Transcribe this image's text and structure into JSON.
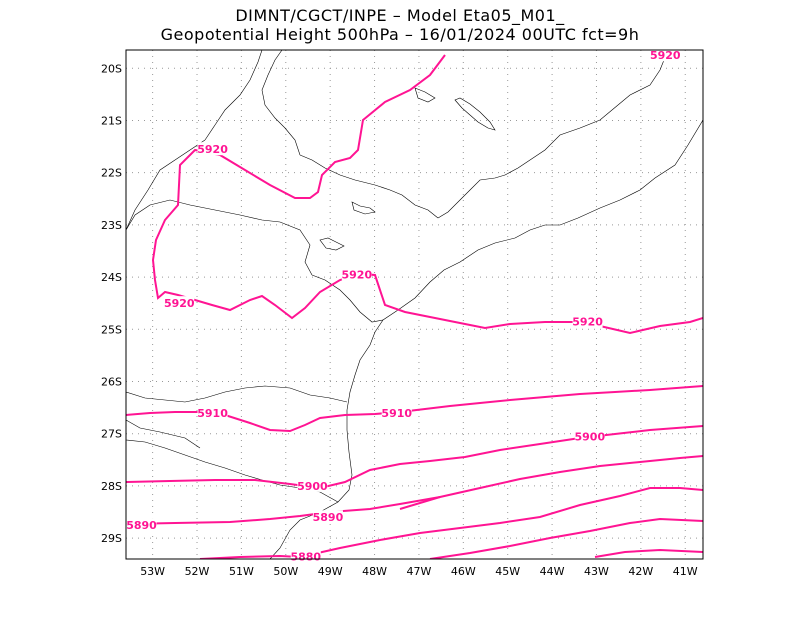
{
  "header": {
    "line1": "DIMNT/CGCT/INPE  –   Model Eta05_M01_",
    "line2": "Geopotential Height 500hPa  –   16/01/2024 00UTC fct=9h"
  },
  "map": {
    "lon_range": [
      -53.6,
      -40.6
    ],
    "lat_range": [
      -29.4,
      -19.65
    ],
    "lat_ticks": [
      {
        "lat": -20,
        "label": "20S"
      },
      {
        "lat": -21,
        "label": "21S"
      },
      {
        "lat": -22,
        "label": "22S"
      },
      {
        "lat": -23,
        "label": "23S"
      },
      {
        "lat": -24,
        "label": "24S"
      },
      {
        "lat": -25,
        "label": "25S"
      },
      {
        "lat": -26,
        "label": "26S"
      },
      {
        "lat": -27,
        "label": "27S"
      },
      {
        "lat": -28,
        "label": "28S"
      },
      {
        "lat": -29,
        "label": "29S"
      }
    ],
    "lon_ticks": [
      {
        "lon": -53,
        "label": "53W"
      },
      {
        "lon": -52,
        "label": "52W"
      },
      {
        "lon": -51,
        "label": "51W"
      },
      {
        "lon": -50,
        "label": "50W"
      },
      {
        "lon": -49,
        "label": "49W"
      },
      {
        "lon": -48,
        "label": "48W"
      },
      {
        "lon": -47,
        "label": "47W"
      },
      {
        "lon": -46,
        "label": "46W"
      },
      {
        "lon": -45,
        "label": "45W"
      },
      {
        "lon": -44,
        "label": "44W"
      },
      {
        "lon": -43,
        "label": "43W"
      },
      {
        "lon": -42,
        "label": "42W"
      },
      {
        "lon": -41,
        "label": "41W"
      }
    ],
    "contour_color": "#ff1493",
    "contour_labels": [
      {
        "text": "5920",
        "lon": -41.45,
        "lat": -19.75
      },
      {
        "text": "5920",
        "lon": -51.65,
        "lat": -21.55
      },
      {
        "text": "5920",
        "lon": -52.4,
        "lat": -24.5
      },
      {
        "text": "5920",
        "lon": -48.4,
        "lat": -23.95
      },
      {
        "text": "5920",
        "lon": -43.2,
        "lat": -24.85
      },
      {
        "text": "5910",
        "lon": -51.65,
        "lat": -26.6
      },
      {
        "text": "5910",
        "lon": -47.5,
        "lat": -26.6
      },
      {
        "text": "5900",
        "lon": -43.15,
        "lat": -27.05
      },
      {
        "text": "5900",
        "lon": -49.4,
        "lat": -28.0
      },
      {
        "text": "5890",
        "lon": -53.25,
        "lat": -28.75
      },
      {
        "text": "5890",
        "lon": -49.05,
        "lat": -28.6
      },
      {
        "text": "5880",
        "lon": -49.55,
        "lat": -29.35
      }
    ]
  }
}
